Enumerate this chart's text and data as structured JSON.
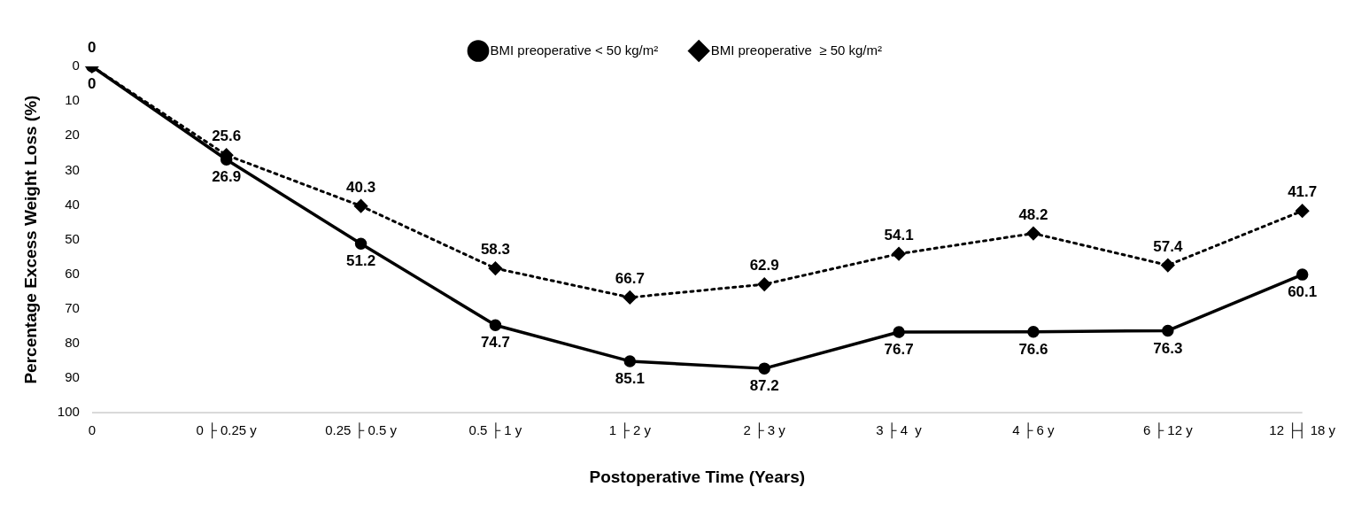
{
  "chart_data": {
    "type": "line",
    "xlabel": "Postoperative Time (Years)",
    "ylabel": "Percentage Excess Weight Loss (%)",
    "categories": [
      "0",
      "0 ├ 0.25 y",
      "0.25 ├ 0.5 y",
      "0.5 ├ 1 y",
      "1 ├ 2 y",
      "2 ├ 3 y",
      "3 ├ 4  y",
      "4 ├ 6 y",
      "6 ├ 12 y",
      "12 ├┤ 18 y"
    ],
    "series": [
      {
        "name": "BMI preoperative < 50 kg/m²",
        "color": "#000000",
        "marker": "circle",
        "line_style": "solid",
        "values": [
          0,
          26.9,
          51.2,
          74.7,
          85.1,
          87.2,
          76.7,
          76.6,
          76.3,
          60.1
        ]
      },
      {
        "name": "BMI preoperative  ≥ 50 kg/m²",
        "color": "#000000",
        "marker": "diamond",
        "line_style": "dotted",
        "values": [
          0,
          25.6,
          40.3,
          58.3,
          66.7,
          62.9,
          54.1,
          48.2,
          57.4,
          41.7
        ]
      }
    ],
    "ylim": [
      100,
      0
    ],
    "yticks": [
      0,
      10,
      20,
      30,
      40,
      50,
      60,
      70,
      80,
      90,
      100
    ],
    "grid": false,
    "legend": "top",
    "data_labels": true
  }
}
